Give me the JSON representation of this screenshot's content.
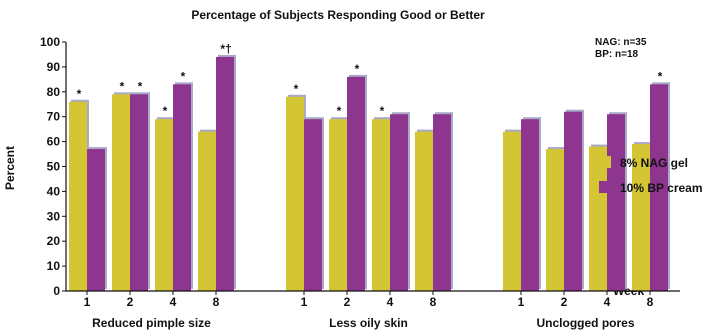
{
  "chart_data": {
    "type": "bar",
    "title": "Percentage of Subjects Responding Good or Better",
    "ylabel": "Percent",
    "xlabel": "Week",
    "ylim": [
      0,
      100
    ],
    "yticks": [
      0,
      10,
      20,
      30,
      40,
      50,
      60,
      70,
      80,
      90,
      100
    ],
    "grid": false,
    "legend_position": "right",
    "notes": [
      "NAG: n=35",
      "BP: n=18"
    ],
    "series": [
      {
        "name": "8% NAG gel",
        "color": "#d4c535"
      },
      {
        "name": "10% BP cream",
        "color": "#8e3590"
      }
    ],
    "shadow_color": "#a9a9c8",
    "groups": [
      {
        "label": "Reduced pimple size",
        "weeks": [
          {
            "week": "1",
            "values": [
              76,
              57
            ],
            "marks": [
              "*",
              ""
            ]
          },
          {
            "week": "2",
            "values": [
              79,
              79
            ],
            "marks": [
              "*",
              "*"
            ]
          },
          {
            "week": "4",
            "values": [
              69,
              83
            ],
            "marks": [
              "*",
              "*"
            ]
          },
          {
            "week": "8",
            "values": [
              64,
              94
            ],
            "marks": [
              "",
              "*†"
            ]
          }
        ]
      },
      {
        "label": "Less oily skin",
        "weeks": [
          {
            "week": "1",
            "values": [
              78,
              69
            ],
            "marks": [
              "*",
              ""
            ]
          },
          {
            "week": "2",
            "values": [
              69,
              86
            ],
            "marks": [
              "*",
              "*"
            ]
          },
          {
            "week": "4",
            "values": [
              69,
              71
            ],
            "marks": [
              "*",
              ""
            ]
          },
          {
            "week": "8",
            "values": [
              64,
              71
            ],
            "marks": [
              "",
              ""
            ]
          }
        ]
      },
      {
        "label": "Unclogged pores",
        "weeks": [
          {
            "week": "1",
            "values": [
              64,
              69
            ],
            "marks": [
              "",
              ""
            ]
          },
          {
            "week": "2",
            "values": [
              57,
              72
            ],
            "marks": [
              "",
              ""
            ]
          },
          {
            "week": "4",
            "values": [
              58,
              71
            ],
            "marks": [
              "",
              ""
            ]
          },
          {
            "week": "8",
            "values": [
              59,
              83
            ],
            "marks": [
              "",
              "*"
            ]
          }
        ]
      }
    ]
  }
}
